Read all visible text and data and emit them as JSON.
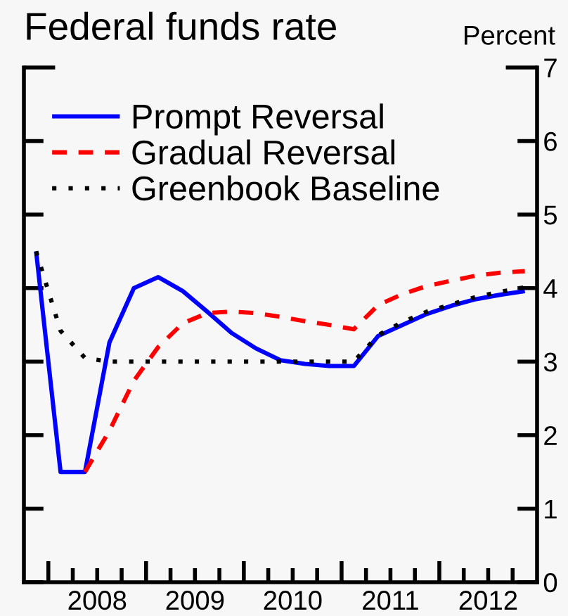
{
  "chart_data": {
    "type": "line",
    "title": "Federal funds rate",
    "ylabel": "Percent",
    "x": [
      2007.875,
      2008.125,
      2008.375,
      2008.625,
      2008.875,
      2009.125,
      2009.375,
      2009.625,
      2009.875,
      2010.125,
      2010.375,
      2010.625,
      2010.875,
      2011.125,
      2011.375,
      2011.625,
      2011.875,
      2012.125,
      2012.375,
      2012.625,
      2012.875
    ],
    "series": [
      {
        "name": "Prompt Reversal",
        "color": "#0000ff",
        "line_style": "solid",
        "values": [
          4.5,
          1.5,
          1.5,
          3.26,
          4.0,
          4.15,
          3.96,
          3.68,
          3.39,
          3.18,
          3.02,
          2.97,
          2.94,
          2.94,
          3.35,
          3.5,
          3.65,
          3.76,
          3.85,
          3.91,
          3.96
        ]
      },
      {
        "name": "Gradual Reversal",
        "color": "#ff0000",
        "line_style": "dashed",
        "values": [
          null,
          null,
          1.5,
          2.06,
          2.74,
          3.2,
          3.52,
          3.66,
          3.68,
          3.66,
          3.61,
          3.55,
          3.5,
          3.44,
          3.77,
          3.92,
          4.03,
          4.1,
          4.17,
          4.21,
          4.23
        ]
      },
      {
        "name": "Greenbook Baseline",
        "color": "#000000",
        "line_style": "dotted",
        "values": [
          4.5,
          3.42,
          3.05,
          3.0,
          3.0,
          3.0,
          3.0,
          3.0,
          3.0,
          3.0,
          3.0,
          3.0,
          3.0,
          3.0,
          3.36,
          3.54,
          3.68,
          3.78,
          3.88,
          3.95,
          4.01
        ]
      }
    ],
    "xlim": [
      2007.75,
      2013.0
    ],
    "xticks": [
      {
        "value": 2008.0,
        "label": null
      },
      {
        "value": 2008.25,
        "label": null
      },
      {
        "value": 2008.5,
        "label": "2008"
      },
      {
        "value": 2008.75,
        "label": null
      },
      {
        "value": 2009.0,
        "label": null
      },
      {
        "value": 2009.25,
        "label": null
      },
      {
        "value": 2009.5,
        "label": "2009"
      },
      {
        "value": 2009.75,
        "label": null
      },
      {
        "value": 2010.0,
        "label": null
      },
      {
        "value": 2010.25,
        "label": null
      },
      {
        "value": 2010.5,
        "label": "2010"
      },
      {
        "value": 2010.75,
        "label": null
      },
      {
        "value": 2011.0,
        "label": null
      },
      {
        "value": 2011.25,
        "label": null
      },
      {
        "value": 2011.5,
        "label": "2011"
      },
      {
        "value": 2011.75,
        "label": null
      },
      {
        "value": 2012.0,
        "label": null
      },
      {
        "value": 2012.25,
        "label": null
      },
      {
        "value": 2012.5,
        "label": "2012"
      },
      {
        "value": 2012.75,
        "label": null
      }
    ],
    "ylim": [
      0,
      7
    ],
    "yticks": [
      0,
      1,
      2,
      3,
      4,
      5,
      6,
      7
    ],
    "legend": "top left"
  }
}
